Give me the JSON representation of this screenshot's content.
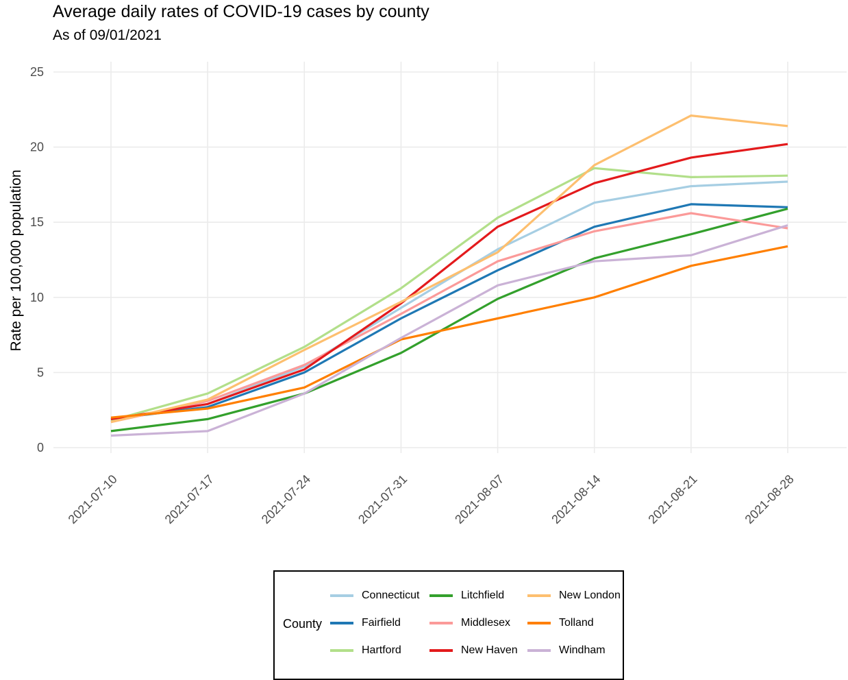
{
  "chart_data": {
    "type": "line",
    "title": "Average daily rates of COVID-19 cases by county",
    "subtitle": "As of 09/01/2021",
    "xlabel": "",
    "ylabel": "Rate per 100,000 population",
    "ylim": [
      0,
      25
    ],
    "yticks": [
      0,
      5,
      10,
      15,
      20,
      25
    ],
    "grid": true,
    "legend_title": "County",
    "legend_placement": "bottom",
    "x": [
      "2021-07-10",
      "2021-07-17",
      "2021-07-24",
      "2021-07-31",
      "2021-08-07",
      "2021-08-14",
      "2021-08-21",
      "2021-08-28"
    ],
    "series": [
      {
        "name": "Connecticut",
        "color": "#a6cee3",
        "values": [
          1.8,
          2.9,
          5.4,
          9.3,
          13.2,
          16.3,
          17.4,
          17.7
        ]
      },
      {
        "name": "Fairfield",
        "color": "#1f78b4",
        "values": [
          1.9,
          2.7,
          5.0,
          8.6,
          11.8,
          14.7,
          16.2,
          16.0
        ]
      },
      {
        "name": "Hartford",
        "color": "#b2df8a",
        "values": [
          1.8,
          3.6,
          6.7,
          10.6,
          15.3,
          18.6,
          18.0,
          18.1
        ]
      },
      {
        "name": "Litchfield",
        "color": "#33a02c",
        "values": [
          1.1,
          1.9,
          3.6,
          6.3,
          9.9,
          12.6,
          14.2,
          15.9
        ]
      },
      {
        "name": "Middlesex",
        "color": "#fb9a99",
        "values": [
          1.7,
          3.1,
          5.5,
          8.9,
          12.4,
          14.4,
          15.6,
          14.6
        ]
      },
      {
        "name": "New Haven",
        "color": "#e31a1c",
        "values": [
          1.9,
          2.9,
          5.2,
          9.6,
          14.7,
          17.6,
          19.3,
          20.2
        ]
      },
      {
        "name": "New London",
        "color": "#fdbf6f",
        "values": [
          1.7,
          3.2,
          6.5,
          9.7,
          13.0,
          18.8,
          22.1,
          21.4
        ]
      },
      {
        "name": "Tolland",
        "color": "#ff7f00",
        "values": [
          2.0,
          2.6,
          4.0,
          7.2,
          8.6,
          10.0,
          12.1,
          13.4
        ]
      },
      {
        "name": "Windham",
        "color": "#cab2d6",
        "values": [
          0.8,
          1.1,
          3.6,
          7.3,
          10.8,
          12.4,
          12.8,
          14.8
        ]
      }
    ]
  }
}
